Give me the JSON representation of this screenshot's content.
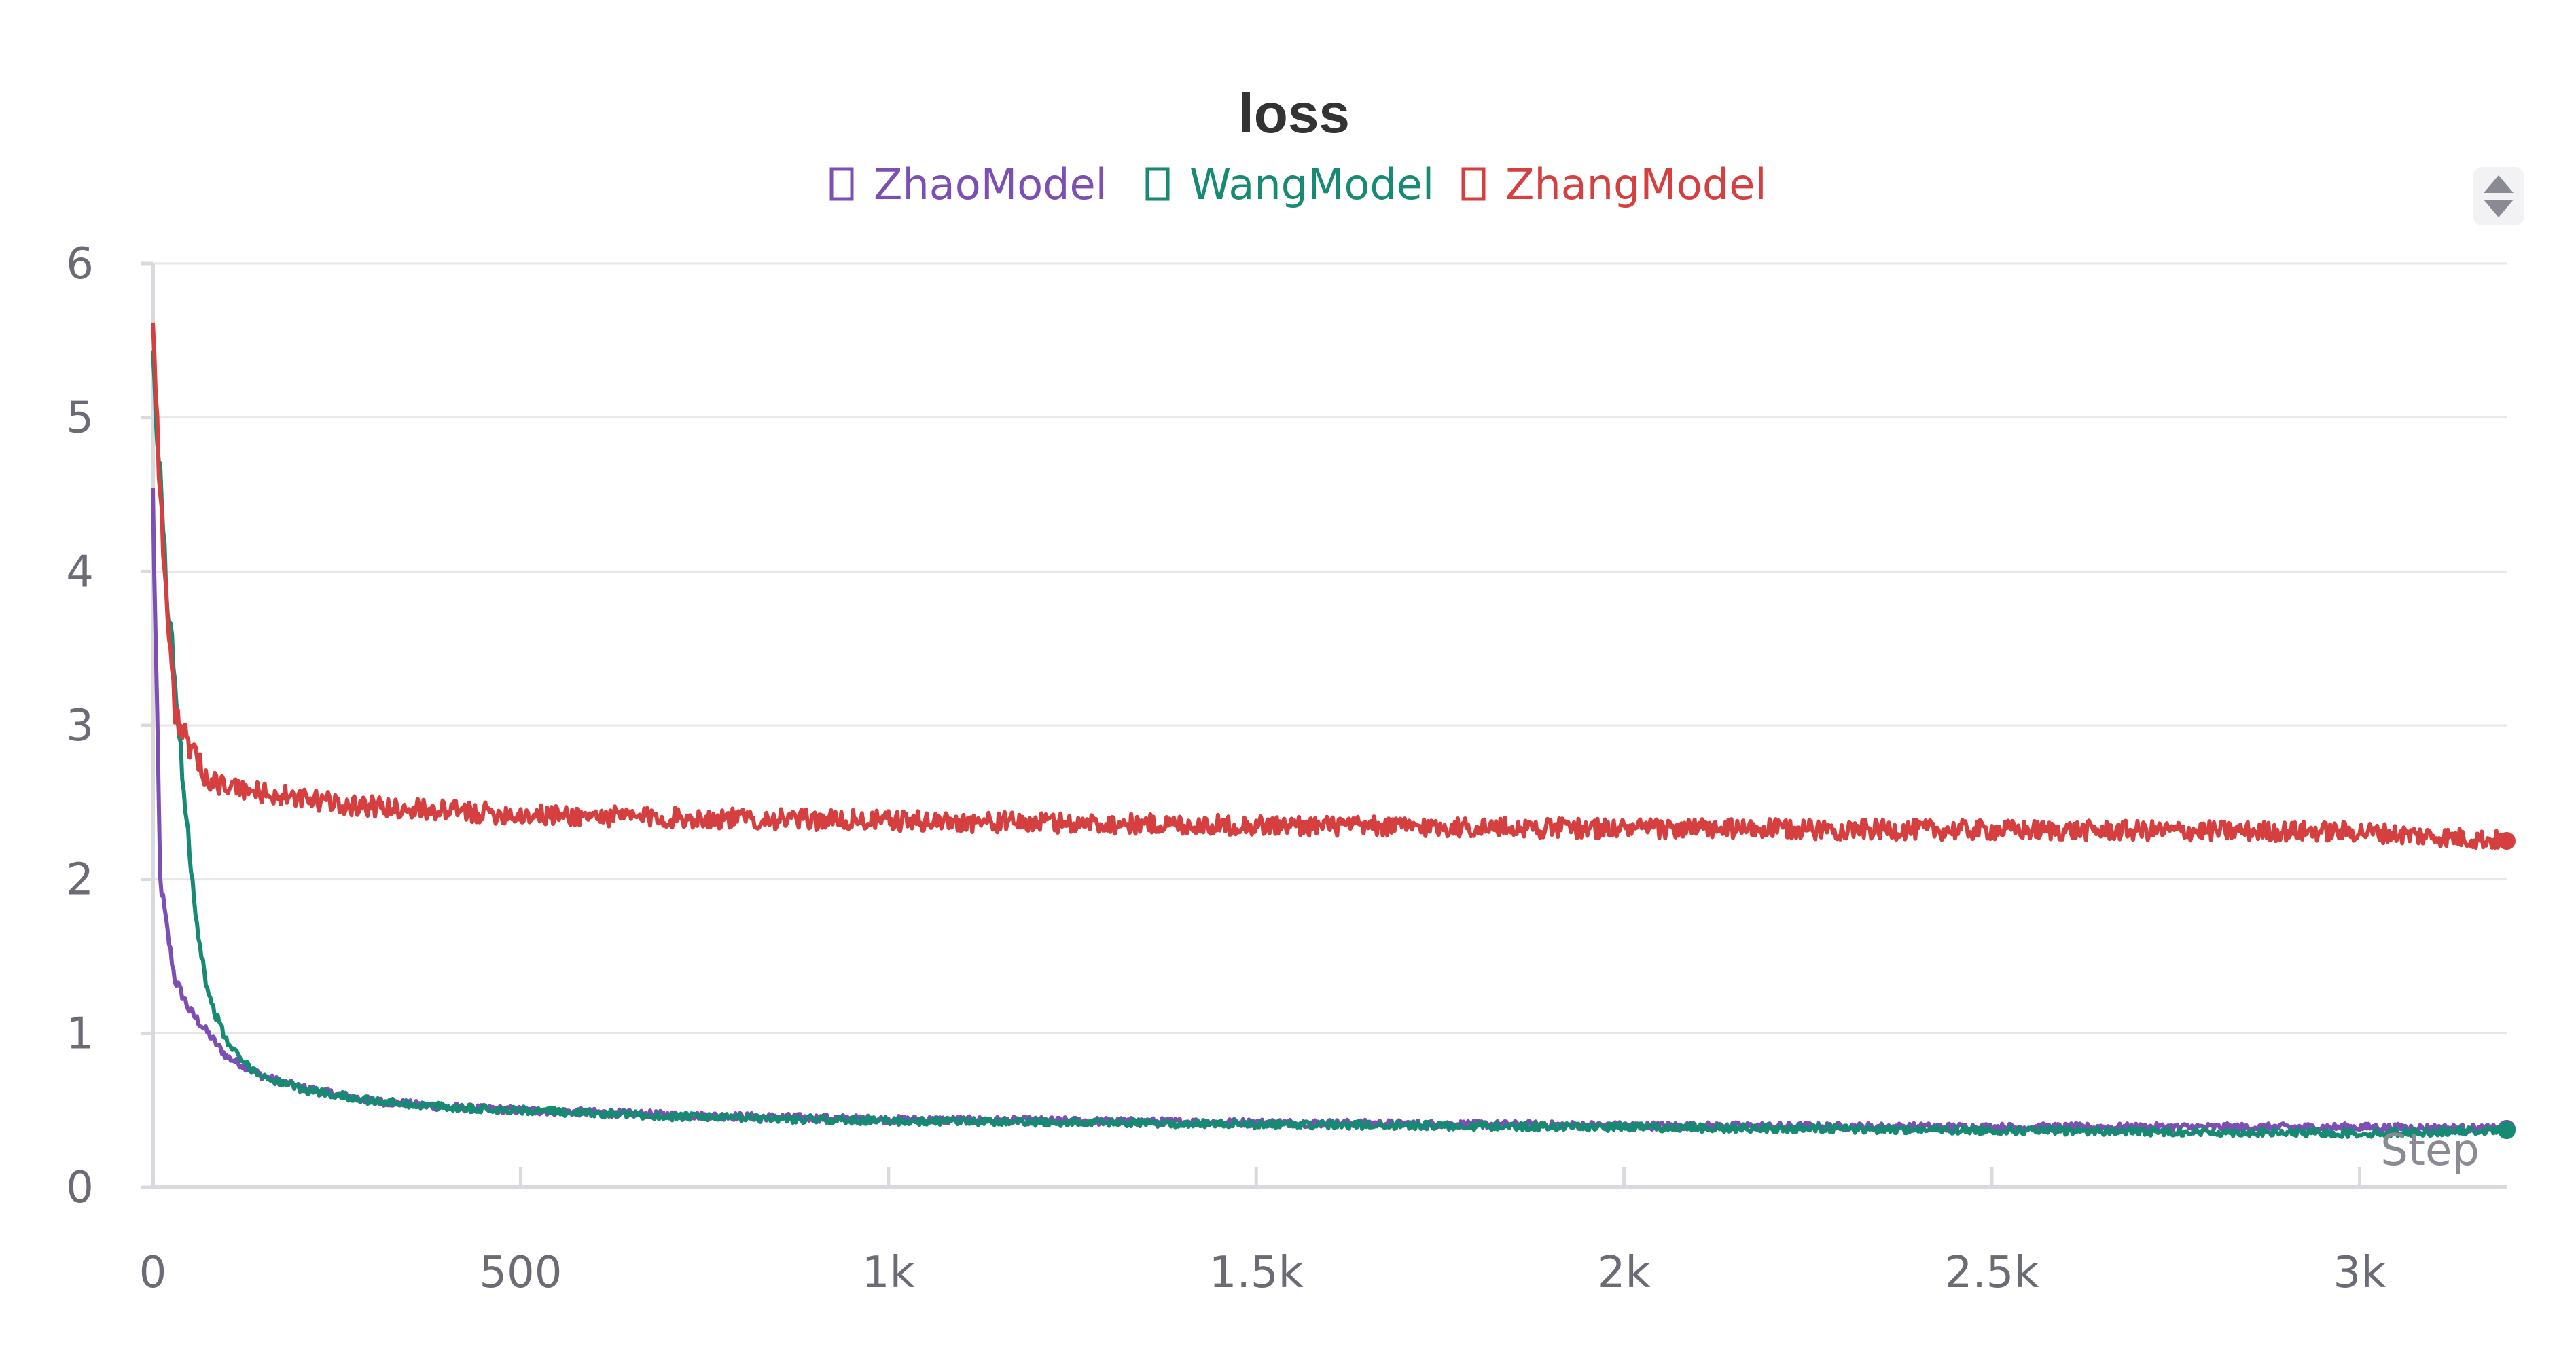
{
  "chart_data": {
    "type": "line",
    "title": "loss",
    "xlabel": "Step",
    "ylabel": "",
    "xlim": [
      0,
      3200
    ],
    "ylim": [
      0,
      6
    ],
    "grid": true,
    "legend_position": "top-center",
    "x_ticks": [
      {
        "value": 0,
        "label": "0"
      },
      {
        "value": 500,
        "label": "500"
      },
      {
        "value": 1000,
        "label": "1k"
      },
      {
        "value": 1500,
        "label": "1.5k"
      },
      {
        "value": 2000,
        "label": "2k"
      },
      {
        "value": 2500,
        "label": "2.5k"
      },
      {
        "value": 3000,
        "label": "3k"
      }
    ],
    "y_ticks": [
      {
        "value": 0,
        "label": "0"
      },
      {
        "value": 1,
        "label": "1"
      },
      {
        "value": 2,
        "label": "2"
      },
      {
        "value": 3,
        "label": "3"
      },
      {
        "value": 4,
        "label": "4"
      },
      {
        "value": 5,
        "label": "5"
      },
      {
        "value": 6,
        "label": "6"
      }
    ],
    "series": [
      {
        "name": "ZhaoModel",
        "color": "#7b4fb3",
        "x": [
          0,
          10,
          20,
          30,
          50,
          75,
          100,
          150,
          200,
          300,
          400,
          500,
          700,
          1000,
          1500,
          2000,
          2500,
          3000,
          3200
        ],
        "values": [
          4.5,
          2.0,
          1.65,
          1.35,
          1.15,
          1.0,
          0.85,
          0.72,
          0.65,
          0.56,
          0.52,
          0.5,
          0.47,
          0.44,
          0.42,
          0.4,
          0.39,
          0.39,
          0.38
        ]
      },
      {
        "name": "WangModel",
        "color": "#168a73",
        "x": [
          0,
          10,
          20,
          30,
          40,
          50,
          60,
          75,
          100,
          125,
          150,
          200,
          300,
          400,
          500,
          700,
          1000,
          1500,
          2000,
          2500,
          3000,
          3200
        ],
        "values": [
          5.3,
          4.6,
          3.8,
          3.3,
          2.7,
          2.2,
          1.7,
          1.25,
          0.95,
          0.8,
          0.72,
          0.64,
          0.56,
          0.52,
          0.5,
          0.46,
          0.43,
          0.41,
          0.39,
          0.37,
          0.35,
          0.37
        ]
      },
      {
        "name": "ZhangModel",
        "color": "#d63f3f",
        "x": [
          0,
          10,
          20,
          30,
          50,
          75,
          100,
          200,
          300,
          500,
          700,
          1000,
          1500,
          2000,
          2500,
          3000,
          3200
        ],
        "values": [
          5.7,
          4.5,
          3.7,
          3.1,
          2.85,
          2.65,
          2.6,
          2.52,
          2.47,
          2.42,
          2.4,
          2.38,
          2.35,
          2.33,
          2.32,
          2.31,
          2.25
        ]
      }
    ]
  }
}
